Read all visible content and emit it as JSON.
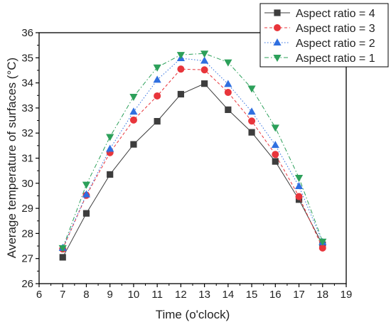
{
  "chart_data": {
    "type": "line",
    "xlabel": "Time (o'clock)",
    "ylabel": "Average temperature of surfaces (°C)",
    "xlim": [
      6,
      19
    ],
    "ylim": [
      26,
      36
    ],
    "xticks": [
      "6",
      "7",
      "8",
      "9",
      "10",
      "11",
      "12",
      "13",
      "14",
      "15",
      "16",
      "17",
      "18",
      "19"
    ],
    "yticks": [
      "26",
      "27",
      "28",
      "29",
      "30",
      "31",
      "32",
      "33",
      "34",
      "35",
      "36"
    ],
    "x": [
      7,
      8,
      9,
      10,
      11,
      12,
      13,
      14,
      15,
      16,
      17,
      18
    ],
    "grid": false,
    "legend_position": "top-right",
    "series": [
      {
        "name": "Aspect ratio = 4",
        "color": "#3d3d3d",
        "marker": "square",
        "line_style": "solid",
        "values": [
          27.05,
          28.8,
          30.35,
          31.55,
          32.47,
          33.55,
          33.97,
          32.93,
          32.03,
          30.87,
          29.35,
          27.55
        ]
      },
      {
        "name": "Aspect ratio = 3",
        "color": "#e8353b",
        "marker": "circle",
        "line_style": "dashed",
        "values": [
          27.38,
          29.52,
          31.22,
          32.52,
          33.48,
          34.55,
          34.52,
          33.62,
          32.48,
          31.15,
          29.47,
          27.42
        ]
      },
      {
        "name": "Aspect ratio = 2",
        "color": "#2f6fe0",
        "marker": "triangle-up",
        "line_style": "dotted",
        "values": [
          27.42,
          29.55,
          31.37,
          32.85,
          34.12,
          34.98,
          34.88,
          33.95,
          32.85,
          31.52,
          29.88,
          27.65
        ]
      },
      {
        "name": "Aspect ratio = 1",
        "color": "#2ca05a",
        "marker": "triangle-down",
        "line_style": "dashdot",
        "values": [
          27.42,
          29.95,
          31.85,
          33.45,
          34.62,
          35.12,
          35.17,
          34.82,
          33.78,
          32.22,
          30.22,
          27.68
        ]
      }
    ]
  }
}
